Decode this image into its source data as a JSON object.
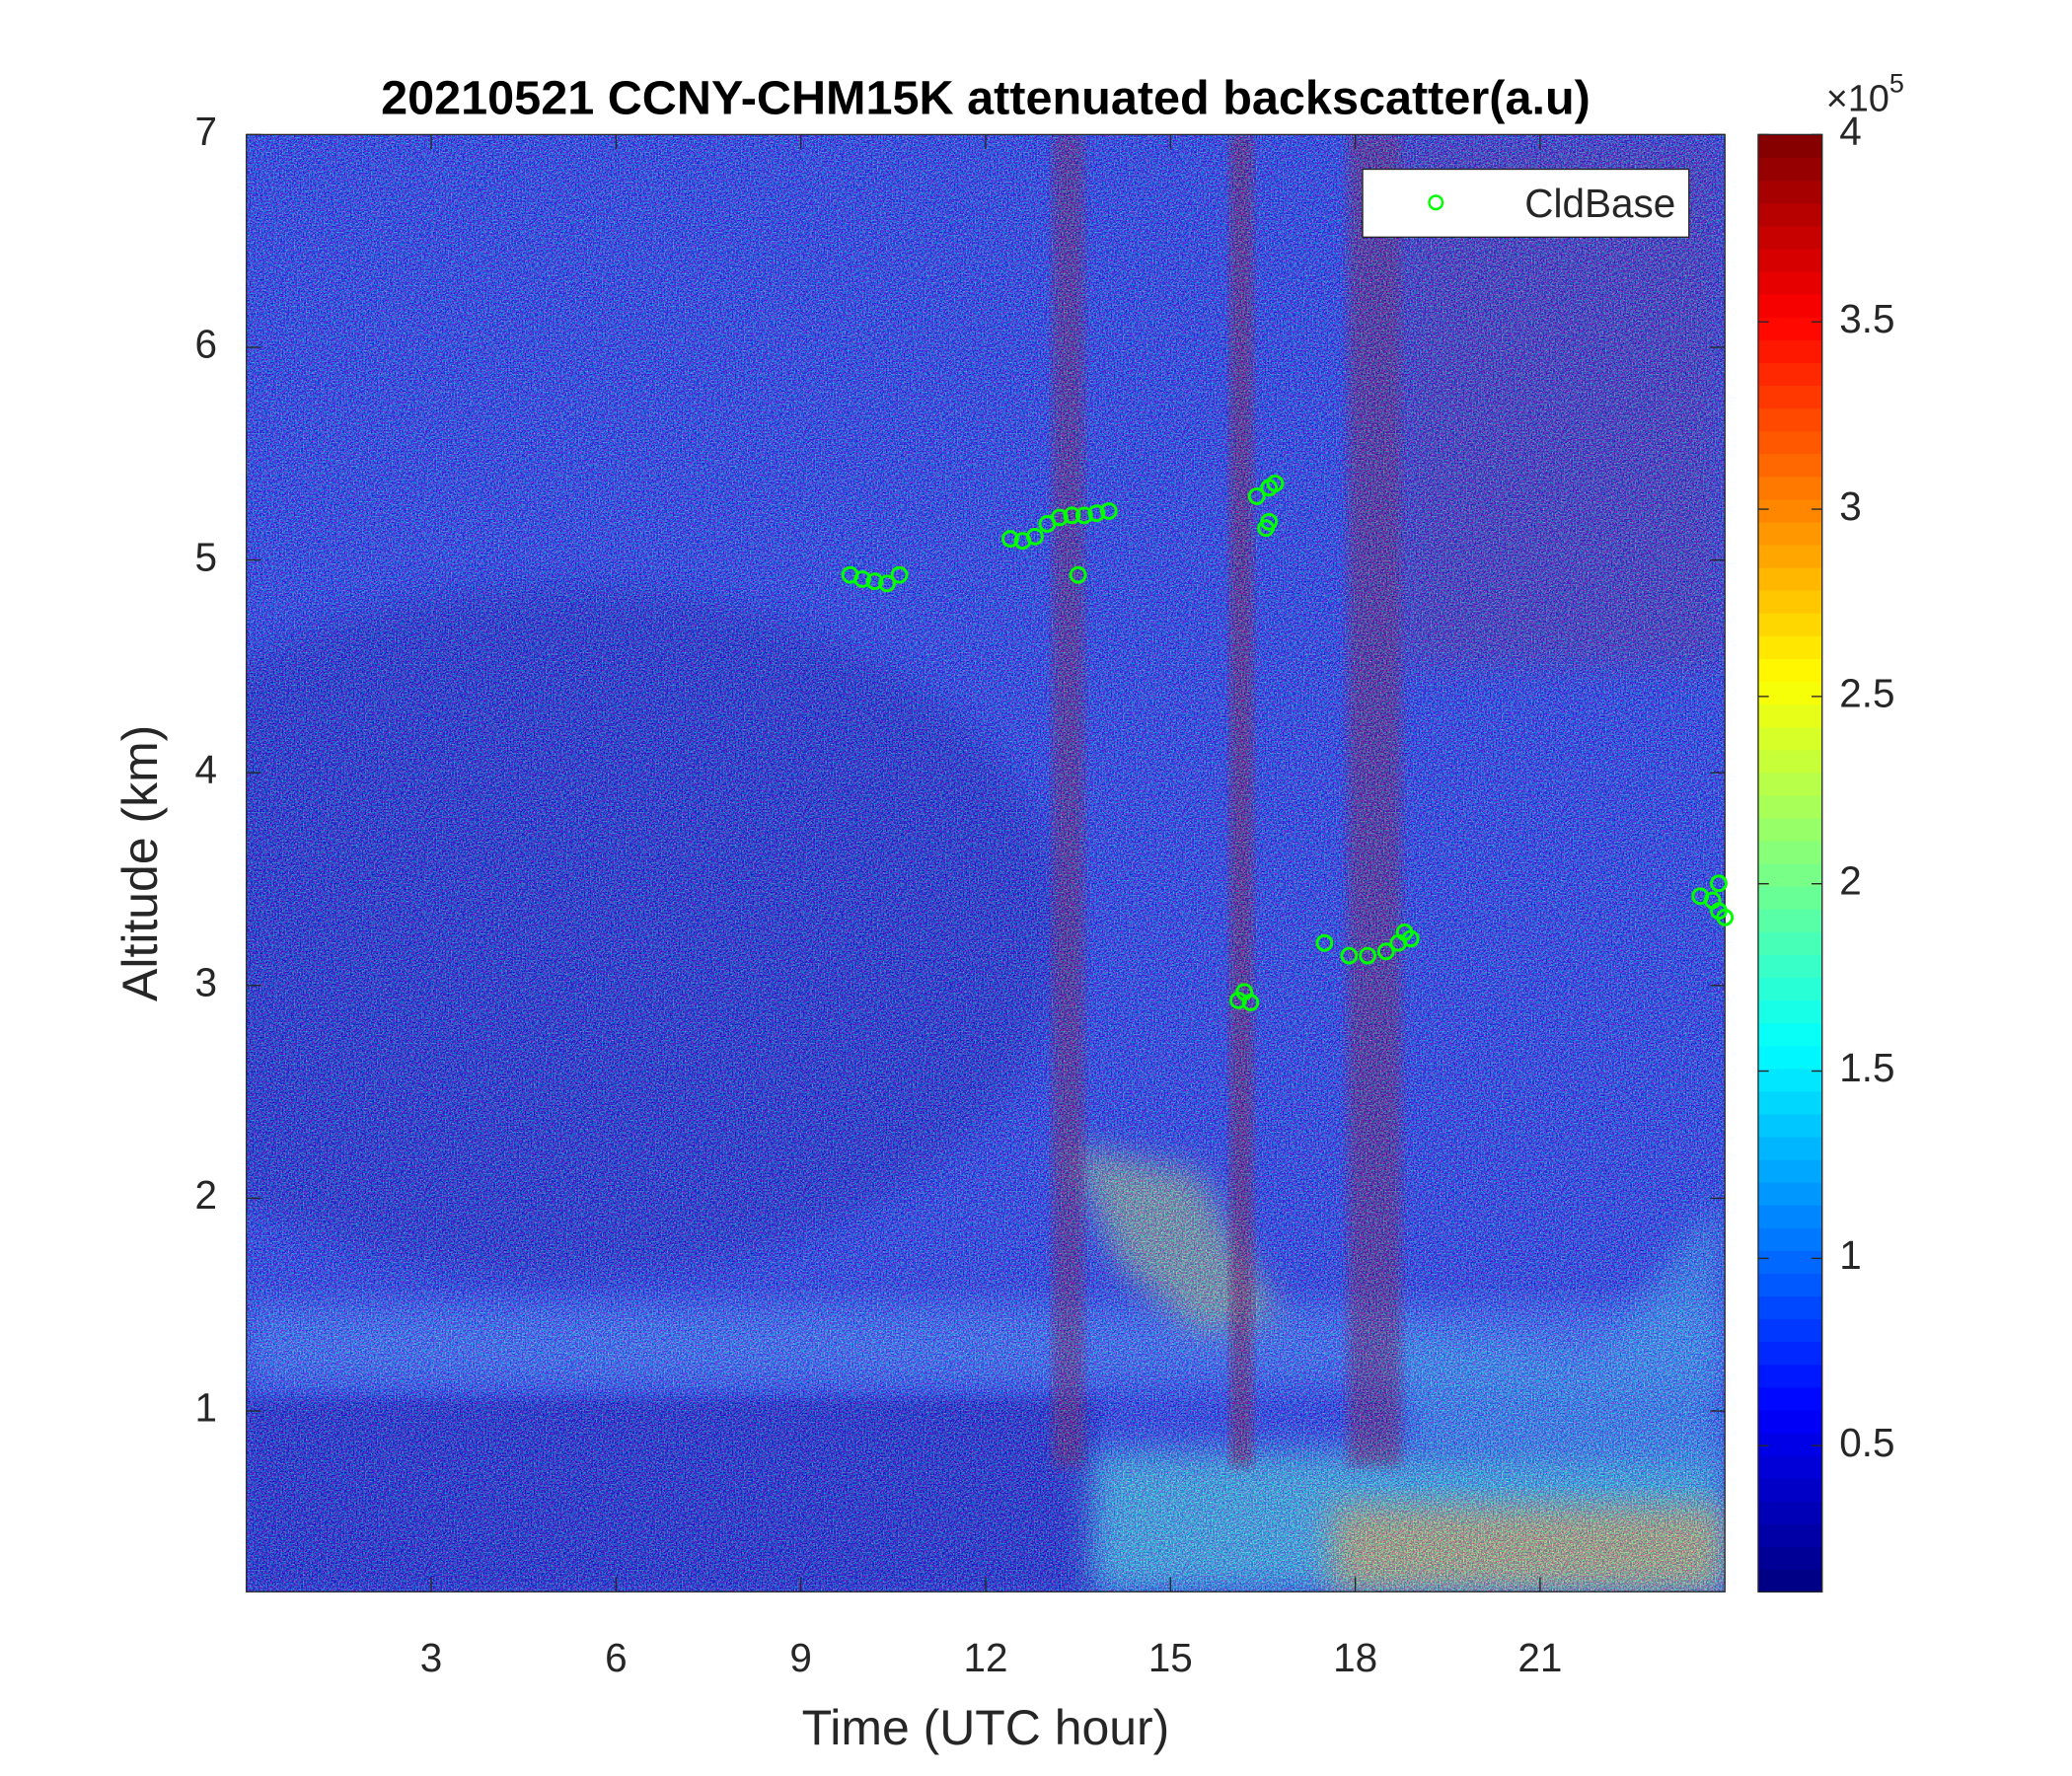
{
  "chart_data": {
    "type": "scatter",
    "title": "20210521 CCNY-CHM15K attenuated backscatter(a.u)",
    "x_label": "Time (UTC hour)",
    "y_label": "Altitude (km)",
    "xlim": [
      0,
      24
    ],
    "ylim": [
      0.15,
      7
    ],
    "xticks": [
      3,
      6,
      9,
      12,
      15,
      18,
      21
    ],
    "yticks": [
      1,
      2,
      3,
      4,
      5,
      6,
      7
    ],
    "legend": "northeast",
    "series": [
      {
        "name": "CldBase",
        "color": "#00ff00",
        "x": [
          9.8,
          10.0,
          10.2,
          10.4,
          10.6,
          12.4,
          12.6,
          12.8,
          13.0,
          13.2,
          13.4,
          13.6,
          13.8,
          14.0,
          13.5,
          16.1,
          16.2,
          16.3,
          16.4,
          16.6,
          16.7,
          16.55,
          16.6,
          17.5,
          17.9,
          18.2,
          18.5,
          18.7,
          18.8,
          18.9,
          23.6,
          23.8,
          23.9,
          24.0,
          23.9
        ],
        "values": [
          4.93,
          4.91,
          4.9,
          4.89,
          4.93,
          5.1,
          5.09,
          5.11,
          5.17,
          5.2,
          5.21,
          5.21,
          5.22,
          5.23,
          4.93,
          2.93,
          2.97,
          2.92,
          5.3,
          5.34,
          5.36,
          5.15,
          5.18,
          3.2,
          3.14,
          3.14,
          3.16,
          3.2,
          3.25,
          3.22,
          3.42,
          3.4,
          3.35,
          3.32,
          3.48
        ]
      }
    ],
    "colorbar": {
      "colormap": "jet",
      "lim": [
        0.11,
        4
      ],
      "ticks": [
        0.5,
        1,
        1.5,
        2,
        2.5,
        3,
        3.5,
        4
      ],
      "multiplier_label": "×10",
      "exponent": 5
    }
  }
}
